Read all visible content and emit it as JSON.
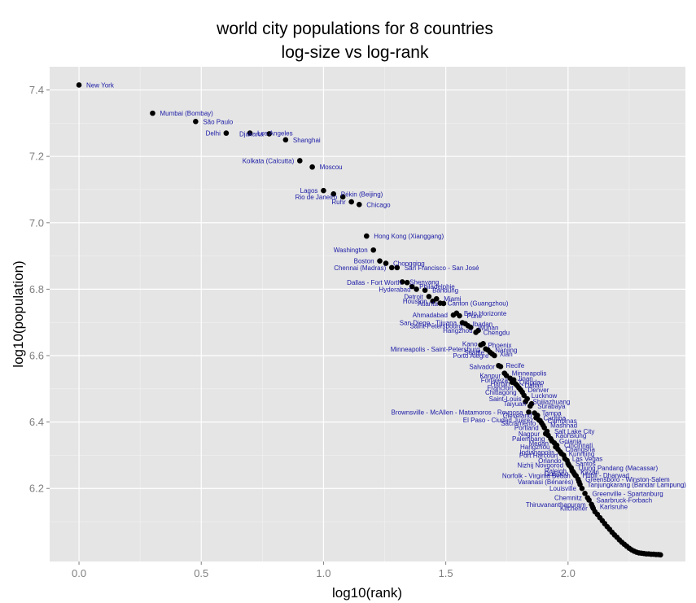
{
  "chart_data": {
    "type": "scatter",
    "title": "world city populations for 8 countries",
    "subtitle": "log-size vs log-rank",
    "xlabel": "log10(rank)",
    "ylabel": "log10(population)",
    "xlim": [
      -0.12,
      2.48
    ],
    "ylim": [
      5.98,
      7.47
    ],
    "x_ticks": [
      0.0,
      0.5,
      1.0,
      1.5,
      2.0
    ],
    "x_tick_labels": [
      "0.0",
      "0.5",
      "1.0",
      "1.5",
      "2.0"
    ],
    "y_ticks": [
      6.2,
      6.4,
      6.6,
      6.8,
      7.0,
      7.2,
      7.4
    ],
    "y_tick_labels": [
      "6.2",
      "6.4",
      "6.6",
      "6.8",
      "7.0",
      "7.2",
      "7.4"
    ],
    "grid": true,
    "colors": {
      "panel": "#e5e5e5",
      "grid_major": "#ffffff",
      "grid_minor": "#f2f2f2",
      "point": "#000000",
      "label": "#1a1aa6"
    },
    "labeled_points": [
      {
        "label": "New York",
        "x": 0.0,
        "y": 7.415
      },
      {
        "label": "Mumbai (Bombay)",
        "x": 0.301,
        "y": 7.33
      },
      {
        "label": "São Paulo",
        "x": 0.477,
        "y": 7.305
      },
      {
        "label": "Delhi",
        "x": 0.602,
        "y": 7.27
      },
      {
        "label": "Los Angeles",
        "x": 0.699,
        "y": 7.27
      },
      {
        "label": "Djakarta",
        "x": 0.778,
        "y": 7.268
      },
      {
        "label": "Shanghai",
        "x": 0.845,
        "y": 7.25
      },
      {
        "label": "Kolkata (Calcutta)",
        "x": 0.903,
        "y": 7.187
      },
      {
        "label": "Moscou",
        "x": 0.954,
        "y": 7.168
      },
      {
        "label": "Lagos",
        "x": 1.0,
        "y": 7.097
      },
      {
        "label": "Pékin (Beijing)",
        "x": 1.041,
        "y": 7.087
      },
      {
        "label": "Rio de Janeiro",
        "x": 1.079,
        "y": 7.078
      },
      {
        "label": "Chicago",
        "x": 1.146,
        "y": 7.055
      },
      {
        "label": "Ruhr",
        "x": 1.114,
        "y": 7.063
      },
      {
        "label": "Hong Kong (Xianggang)",
        "x": 1.176,
        "y": 6.96
      },
      {
        "label": "Washington",
        "x": 1.204,
        "y": 6.918
      },
      {
        "label": "Chongqing",
        "x": 1.255,
        "y": 6.878
      },
      {
        "label": "Boston",
        "x": 1.23,
        "y": 6.885
      },
      {
        "label": "San Francisco - San José",
        "x": 1.301,
        "y": 6.865
      },
      {
        "label": "Chennai (Madras)",
        "x": 1.279,
        "y": 6.865
      },
      {
        "label": "Shenyang",
        "x": 1.322,
        "y": 6.822
      },
      {
        "label": "Dallas - Fort Worth",
        "x": 1.342,
        "y": 6.82
      },
      {
        "label": "Philadelphie",
        "x": 1.362,
        "y": 6.808
      },
      {
        "label": "Hyderabad",
        "x": 1.38,
        "y": 6.8
      },
      {
        "label": "Bandung",
        "x": 1.415,
        "y": 6.797
      },
      {
        "label": "Detroit",
        "x": 1.431,
        "y": 6.778
      },
      {
        "label": "Miami",
        "x": 1.462,
        "y": 6.771
      },
      {
        "label": "Houston",
        "x": 1.447,
        "y": 6.764
      },
      {
        "label": "Canton (Guangzhou)",
        "x": 1.477,
        "y": 6.758
      },
      {
        "label": "Atlanta",
        "x": 1.491,
        "y": 6.757
      },
      {
        "label": "Belo Horizonte",
        "x": 1.544,
        "y": 6.728
      },
      {
        "label": "Ahmadabad",
        "x": 1.531,
        "y": 6.722
      },
      {
        "label": "Pune",
        "x": 1.556,
        "y": 6.72
      },
      {
        "label": "San Diego - Tijuana",
        "x": 1.568,
        "y": 6.699
      },
      {
        "label": "Ibadan",
        "x": 1.58,
        "y": 6.696
      },
      {
        "label": "Saint-Petersbourg",
        "x": 1.591,
        "y": 6.69
      },
      {
        "label": "Wuhan",
        "x": 1.602,
        "y": 6.685
      },
      {
        "label": "Hangzhou",
        "x": 1.633,
        "y": 6.676
      },
      {
        "label": "Chengdu",
        "x": 1.623,
        "y": 6.67
      },
      {
        "label": "Kano",
        "x": 1.653,
        "y": 6.636
      },
      {
        "label": "Phoenix",
        "x": 1.643,
        "y": 6.632
      },
      {
        "label": "Minneapolis - Saint-Petersburg",
        "x": 1.663,
        "y": 6.62
      },
      {
        "label": "Nanjing",
        "x": 1.672,
        "y": 6.617
      },
      {
        "label": "Seattle",
        "x": 1.681,
        "y": 6.61
      },
      {
        "label": "Xian",
        "x": 1.69,
        "y": 6.605
      },
      {
        "label": "Porto Alegre",
        "x": 1.699,
        "y": 6.6
      },
      {
        "label": "Recife",
        "x": 1.716,
        "y": 6.57
      },
      {
        "label": "Salvador",
        "x": 1.724,
        "y": 6.567
      },
      {
        "label": "Minneapolis",
        "x": 1.74,
        "y": 6.547
      },
      {
        "label": "Kanpur",
        "x": 1.748,
        "y": 6.54
      },
      {
        "label": "Jinan",
        "x": 1.763,
        "y": 6.532
      },
      {
        "label": "Fortaleza",
        "x": 1.778,
        "y": 6.527
      },
      {
        "label": "Qingdao",
        "x": 1.771,
        "y": 6.52
      },
      {
        "label": "Harbin",
        "x": 1.785,
        "y": 6.515
      },
      {
        "label": "Dalian",
        "x": 1.792,
        "y": 6.51
      },
      {
        "label": "Francfort",
        "x": 1.799,
        "y": 6.503
      },
      {
        "label": "Denver",
        "x": 1.806,
        "y": 6.497
      },
      {
        "label": "Chittagong",
        "x": 1.813,
        "y": 6.49
      },
      {
        "label": "Lucknow",
        "x": 1.82,
        "y": 6.48
      },
      {
        "label": "Saint-Louis",
        "x": 1.833,
        "y": 6.47
      },
      {
        "label": "Shijiazhuang",
        "x": 1.826,
        "y": 6.461
      },
      {
        "label": "Taiyuan",
        "x": 1.851,
        "y": 6.455
      },
      {
        "label": "Surabaya",
        "x": 1.845,
        "y": 6.448
      },
      {
        "label": "Brownsville - McAllen - Matamoros - Reynosa",
        "x": 1.839,
        "y": 6.43
      },
      {
        "label": "Tampa",
        "x": 1.863,
        "y": 6.427
      },
      {
        "label": "Cleveland",
        "x": 1.875,
        "y": 6.42
      },
      {
        "label": "Curitiba",
        "x": 1.869,
        "y": 6.413
      },
      {
        "label": "El Paso - Ciudad Juarez",
        "x": 1.881,
        "y": 6.406
      },
      {
        "label": "Campinas",
        "x": 1.886,
        "y": 6.404
      },
      {
        "label": "Sacramento",
        "x": 1.892,
        "y": 6.397
      },
      {
        "label": "Mashhad",
        "x": 1.898,
        "y": 6.39
      },
      {
        "label": "Portland",
        "x": 1.903,
        "y": 6.383
      },
      {
        "label": "Salt Lake City",
        "x": 1.914,
        "y": 6.372
      },
      {
        "label": "Nagpur",
        "x": 1.908,
        "y": 6.365
      },
      {
        "label": "Kaohsiung",
        "x": 1.919,
        "y": 6.36
      },
      {
        "label": "Palembang",
        "x": 1.929,
        "y": 6.35
      },
      {
        "label": "Goiania",
        "x": 1.934,
        "y": 6.343
      },
      {
        "label": "Medan",
        "x": 1.944,
        "y": 6.337
      },
      {
        "label": "Cincinnati",
        "x": 1.954,
        "y": 6.33
      },
      {
        "label": "Hangzhou",
        "x": 1.949,
        "y": 6.325
      },
      {
        "label": "Changsha",
        "x": 1.959,
        "y": 6.318
      },
      {
        "label": "Indianapolis",
        "x": 1.968,
        "y": 6.31
      },
      {
        "label": "Kunming",
        "x": 1.973,
        "y": 6.305
      },
      {
        "label": "Port Harcourt",
        "x": 1.982,
        "y": 6.3
      },
      {
        "label": "Las Vegas",
        "x": 1.987,
        "y": 6.29
      },
      {
        "label": "Orlando",
        "x": 1.996,
        "y": 6.284
      },
      {
        "label": "Santos",
        "x": 2.0,
        "y": 6.275
      },
      {
        "label": "Nizhij Novgorod",
        "x": 2.004,
        "y": 6.27
      },
      {
        "label": "Ujung Pandang (Macassar)",
        "x": 2.013,
        "y": 6.262
      },
      {
        "label": "Raleigh",
        "x": 2.017,
        "y": 6.253
      },
      {
        "label": "Kazan",
        "x": 2.021,
        "y": 6.25
      },
      {
        "label": "Guiyang",
        "x": 2.025,
        "y": 6.245
      },
      {
        "label": "Hubli - Dharwad",
        "x": 2.029,
        "y": 6.24
      },
      {
        "label": "Norfolk - Virginia Beach",
        "x": 2.033,
        "y": 6.238
      },
      {
        "label": "Greensboro - Winston-Salem",
        "x": 2.041,
        "y": 6.228
      },
      {
        "label": "Varanasi (Bénarès)",
        "x": 2.045,
        "y": 6.22
      },
      {
        "label": "Tanjungkarang (Bandar Lampung)",
        "x": 2.049,
        "y": 6.212
      },
      {
        "label": "Louisville",
        "x": 2.057,
        "y": 6.2
      },
      {
        "label": "Greenville - Spartanburg",
        "x": 2.069,
        "y": 6.185
      },
      {
        "label": "Chemnitz",
        "x": 2.08,
        "y": 6.172
      },
      {
        "label": "Saarbruck-Forbach",
        "x": 2.086,
        "y": 6.165
      },
      {
        "label": "Thiruvananthapuram",
        "x": 2.096,
        "y": 6.152
      },
      {
        "label": "Karlsruhe",
        "x": 2.1,
        "y": 6.145
      },
      {
        "label": "Kitchener",
        "x": 2.103,
        "y": 6.14
      }
    ],
    "unlabeled_points": [
      [
        2.11,
        6.13
      ],
      [
        2.12,
        6.122
      ],
      [
        2.13,
        6.112
      ],
      [
        2.14,
        6.103
      ],
      [
        2.15,
        6.094
      ],
      [
        2.16,
        6.085
      ],
      [
        2.17,
        6.077
      ],
      [
        2.18,
        6.068
      ],
      [
        2.19,
        6.06
      ],
      [
        2.2,
        6.053
      ],
      [
        2.21,
        6.045
      ],
      [
        2.22,
        6.038
      ],
      [
        2.23,
        6.032
      ],
      [
        2.24,
        6.026
      ],
      [
        2.25,
        6.02
      ],
      [
        2.26,
        6.015
      ],
      [
        2.27,
        6.011
      ],
      [
        2.28,
        6.008
      ],
      [
        2.29,
        6.006
      ],
      [
        2.3,
        6.005
      ],
      [
        2.31,
        6.004
      ],
      [
        2.32,
        6.003
      ],
      [
        2.33,
        6.003
      ],
      [
        2.34,
        6.002
      ],
      [
        2.35,
        6.002
      ],
      [
        2.36,
        6.001
      ],
      [
        2.37,
        6.001
      ],
      [
        2.378,
        6.0
      ]
    ]
  }
}
